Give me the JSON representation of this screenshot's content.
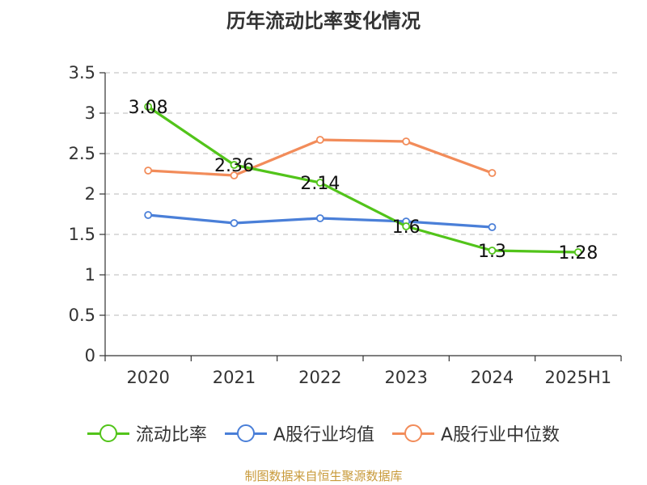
{
  "chart_data": {
    "type": "line",
    "title": "历年流动比率变化情况",
    "categories": [
      "2020",
      "2021",
      "2022",
      "2023",
      "2024",
      "2025H1"
    ],
    "ylim": [
      0,
      3.5
    ],
    "yticks": [
      "0",
      "0.5",
      "1",
      "1.5",
      "2",
      "2.5",
      "3",
      "3.5"
    ],
    "grid": "horizontal-dashed",
    "legend_position": "bottom",
    "series": [
      {
        "name": "流动比率",
        "color": "#52c41a",
        "values": [
          3.08,
          2.36,
          2.14,
          1.6,
          1.3,
          1.28
        ],
        "labels": [
          "3.08",
          "2.36",
          "2.14",
          "1.6",
          "1.3",
          "1.28"
        ]
      },
      {
        "name": "A股行业均值",
        "color": "#4a7fd8",
        "values": [
          1.74,
          1.64,
          1.7,
          1.66,
          1.59,
          null
        ]
      },
      {
        "name": "A股行业中位数",
        "color": "#f28c5a",
        "values": [
          2.29,
          2.23,
          2.67,
          2.65,
          2.26,
          null
        ]
      }
    ]
  },
  "footer": {
    "source": "制图数据来自恒生聚源数据库"
  }
}
